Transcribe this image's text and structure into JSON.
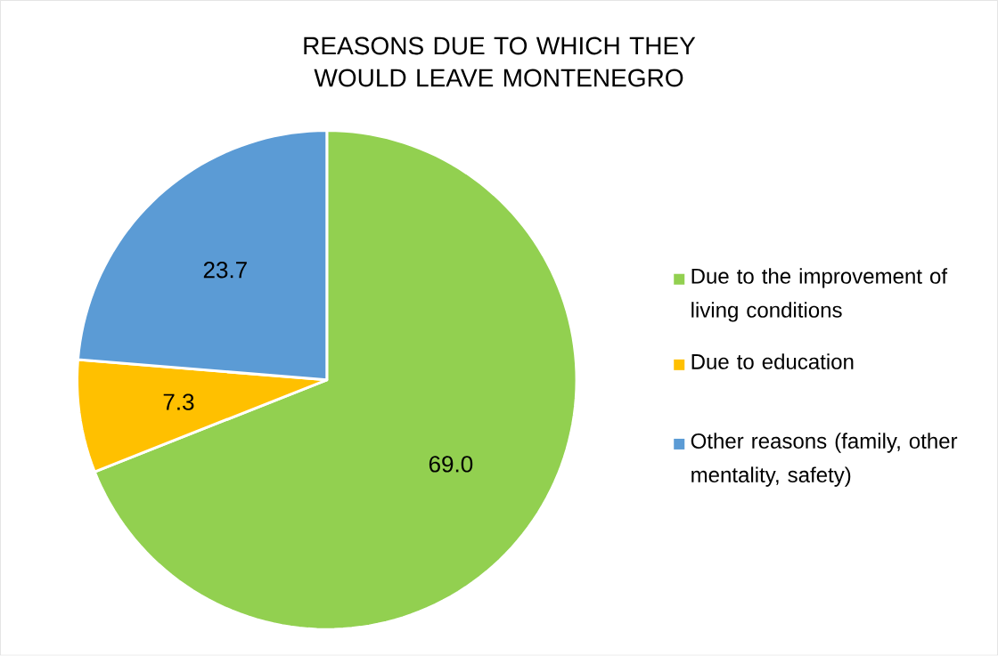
{
  "chart_data": {
    "type": "pie",
    "title": "REASONS DUE TO WHICH THEY WOULD LEAVE MONTENEGRO",
    "categories": [
      "Due to the improvement of living conditions",
      "Due to education",
      "Other reasons (family, other mentality, safety)"
    ],
    "values": [
      69.0,
      7.3,
      23.7
    ],
    "colors": [
      "#92d050",
      "#ffc000",
      "#5b9bd5"
    ],
    "value_labels": [
      "69.0",
      "7.3",
      "23.7"
    ],
    "legend": "right"
  }
}
